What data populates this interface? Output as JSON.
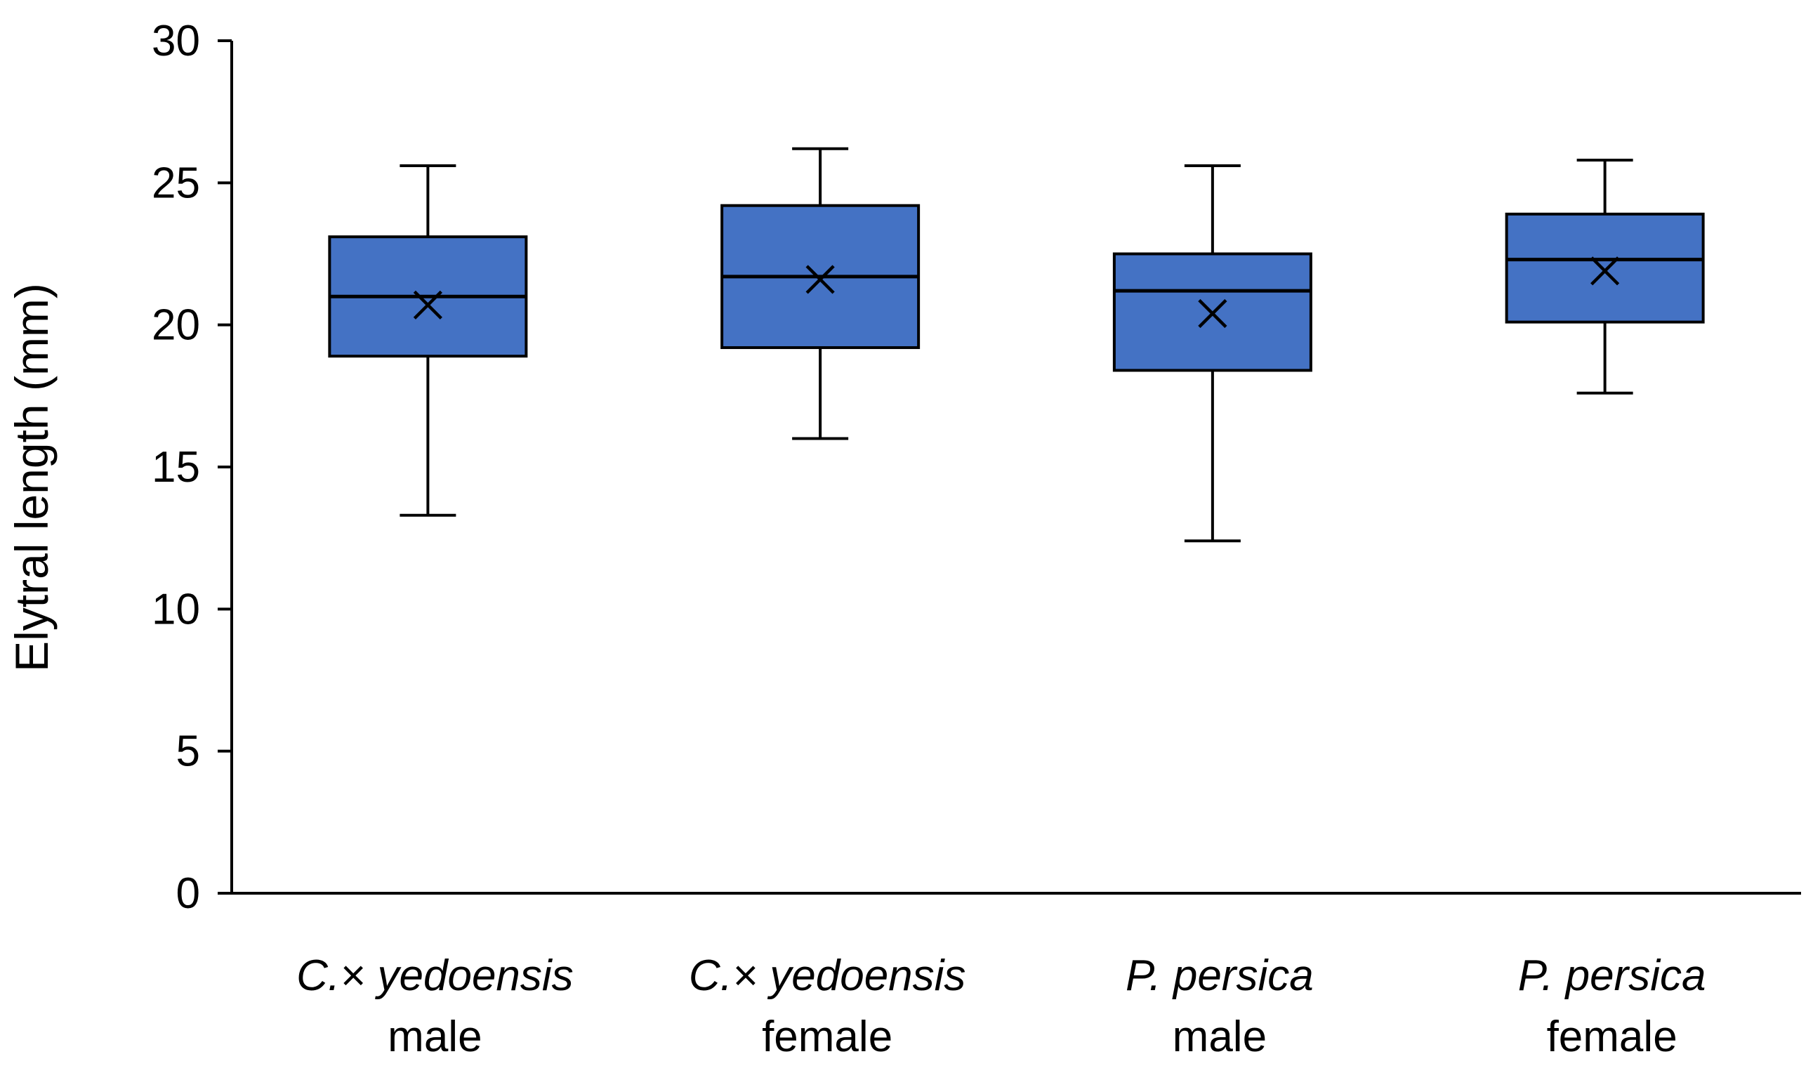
{
  "chart_data": {
    "type": "box",
    "title": "",
    "xlabel": "",
    "ylabel": "Elytral length (mm)",
    "ylim": [
      0,
      30
    ],
    "yticks": [
      0,
      5,
      10,
      15,
      20,
      25,
      30
    ],
    "grid": false,
    "legend": "none",
    "box_color": "#4472C4",
    "stroke_color": "#000000",
    "categories": [
      {
        "species": "C.× yedoensis",
        "sex": "male",
        "min": 13.3,
        "q1": 18.9,
        "median": 21.0,
        "q3": 23.1,
        "max": 25.6,
        "mean": 20.7
      },
      {
        "species": "C.× yedoensis",
        "sex": "female",
        "min": 16.0,
        "q1": 19.2,
        "median": 21.7,
        "q3": 24.2,
        "max": 26.2,
        "mean": 21.6
      },
      {
        "species": "P. persica",
        "sex": "male",
        "min": 12.4,
        "q1": 18.4,
        "median": 21.2,
        "q3": 22.5,
        "max": 25.6,
        "mean": 20.4
      },
      {
        "species": "P. persica",
        "sex": "female",
        "min": 17.6,
        "q1": 20.1,
        "median": 22.3,
        "q3": 23.9,
        "max": 25.8,
        "mean": 21.9
      }
    ]
  }
}
